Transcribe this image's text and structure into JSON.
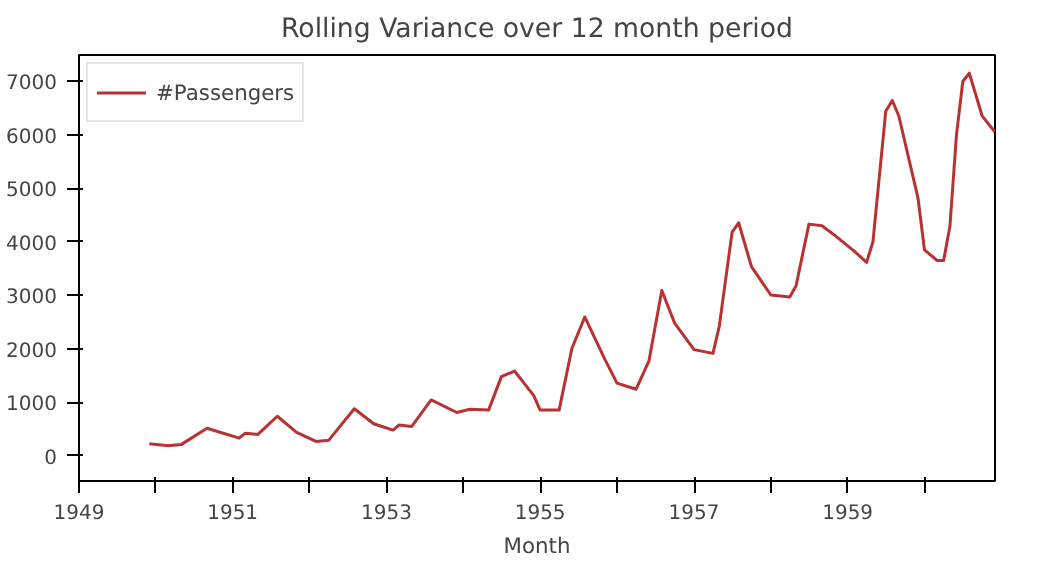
{
  "chart_data": {
    "type": "line",
    "title": "Rolling Variance over 12 month period",
    "xlabel": "Month",
    "x": [
      "1949-12",
      "1950-03",
      "1950-05",
      "1950-09",
      "1951-02",
      "1951-03",
      "1951-05",
      "1951-08",
      "1951-11",
      "1952-02",
      "1952-04",
      "1952-08",
      "1952-11",
      "1953-02",
      "1953-03",
      "1953-05",
      "1953-08",
      "1953-12",
      "1954-02",
      "1954-05",
      "1954-07",
      "1954-09",
      "1954-12",
      "1955-01",
      "1955-04",
      "1955-06",
      "1955-08",
      "1955-11",
      "1956-01",
      "1956-04",
      "1956-06",
      "1956-08",
      "1956-10",
      "1957-01",
      "1957-04",
      "1957-05",
      "1957-07",
      "1957-08",
      "1957-10",
      "1958-01",
      "1958-04",
      "1958-05",
      "1958-07",
      "1958-09",
      "1958-11",
      "1959-02",
      "1959-04",
      "1959-05",
      "1959-07",
      "1959-08",
      "1959-09",
      "1959-12",
      "1960-01",
      "1960-03",
      "1960-04",
      "1960-05",
      "1960-06",
      "1960-07",
      "1960-08",
      "1960-10",
      "1960-12"
    ],
    "series": [
      {
        "name": "#Passengers",
        "color": "#b83232",
        "values": [
          225,
          190,
          210,
          515,
          330,
          420,
          400,
          740,
          440,
          270,
          290,
          880,
          600,
          480,
          575,
          550,
          1045,
          810,
          870,
          855,
          1480,
          1585,
          1130,
          855,
          855,
          2010,
          2595,
          1830,
          1360,
          1245,
          1775,
          3090,
          2480,
          1985,
          1915,
          2420,
          4180,
          4355,
          3535,
          3005,
          2970,
          3180,
          4330,
          4300,
          4120,
          3825,
          3615,
          4000,
          6440,
          6640,
          6350,
          4820,
          3850,
          3650,
          3650,
          4295,
          6000,
          6995,
          7150,
          6350,
          6050
        ]
      }
    ],
    "xlim": [
      "1949-01",
      "1960-12"
    ],
    "xticks": [
      {
        "value": "1949",
        "label": "1949"
      },
      {
        "value": "1950",
        "label": null
      },
      {
        "value": "1951",
        "label": "1951"
      },
      {
        "value": "1952",
        "label": null
      },
      {
        "value": "1953",
        "label": "1953"
      },
      {
        "value": "1954",
        "label": null
      },
      {
        "value": "1955",
        "label": "1955"
      },
      {
        "value": "1956",
        "label": null
      },
      {
        "value": "1957",
        "label": "1957"
      },
      {
        "value": "1958",
        "label": null
      },
      {
        "value": "1959",
        "label": "1959"
      },
      {
        "value": "1960",
        "label": null
      }
    ],
    "ylim": [
      -470,
      7490
    ],
    "yticks": [
      0,
      1000,
      2000,
      3000,
      4000,
      5000,
      6000,
      7000
    ],
    "legend": "top left",
    "grid": false,
    "line_style": "solid"
  }
}
